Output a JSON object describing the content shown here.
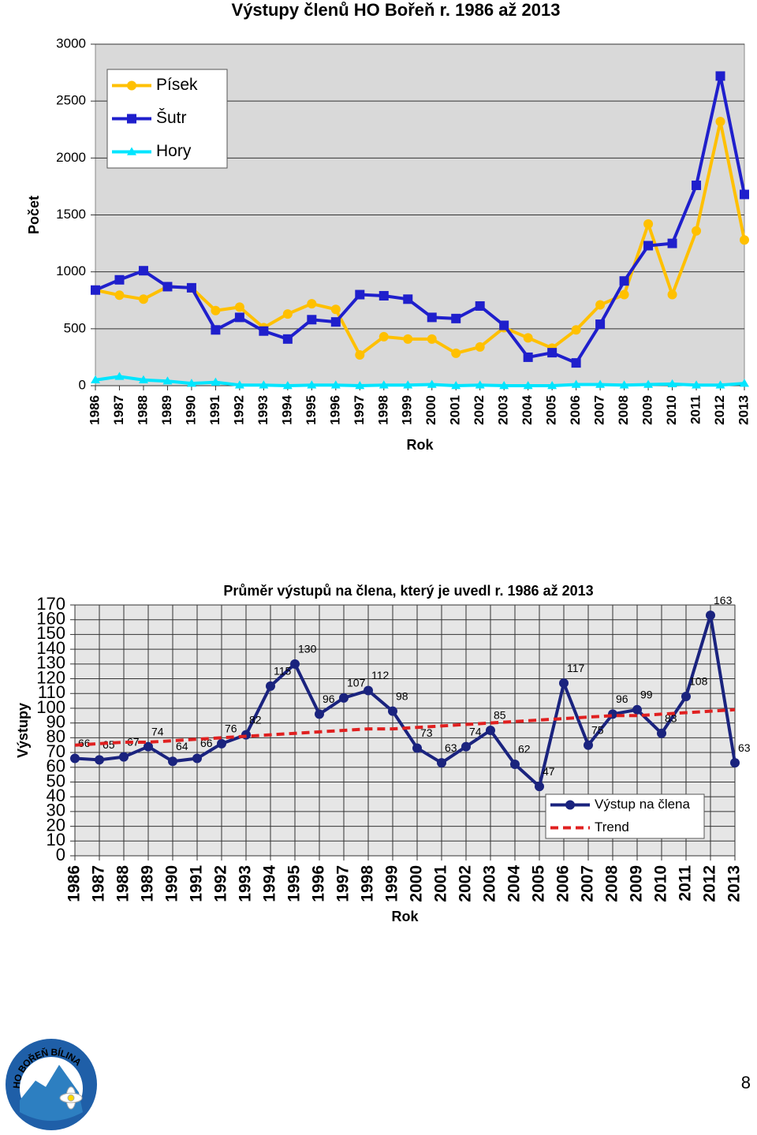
{
  "chart_data": [
    {
      "type": "line",
      "title": "Výstupy členů HO Bořeň r. 1986 až 2013",
      "xlabel": "Rok",
      "ylabel": "Počet",
      "categories": [
        "1986",
        "1987",
        "1988",
        "1989",
        "1990",
        "1991",
        "1992",
        "1993",
        "1994",
        "1995",
        "1996",
        "1997",
        "1998",
        "1999",
        "2000",
        "2001",
        "2002",
        "2003",
        "2004",
        "2005",
        "2006",
        "2007",
        "2008",
        "2009",
        "2010",
        "2011",
        "2012",
        "2013"
      ],
      "ylim": [
        0,
        3000
      ],
      "yticks": [
        0,
        500,
        1000,
        1500,
        2000,
        2500,
        3000
      ],
      "grid": true,
      "xgrid": false,
      "legend": "upper left",
      "series": [
        {
          "name": "Písek",
          "color": "#ffc000",
          "marker": "circle",
          "values": [
            840,
            795,
            760,
            870,
            860,
            660,
            690,
            510,
            630,
            720,
            670,
            270,
            430,
            410,
            410,
            285,
            340,
            510,
            420,
            330,
            490,
            710,
            800,
            1420,
            800,
            1360,
            2320,
            1280
          ]
        },
        {
          "name": "Šutr",
          "color": "#1f1fcc",
          "marker": "square",
          "values": [
            840,
            930,
            1010,
            870,
            860,
            490,
            600,
            480,
            410,
            580,
            560,
            800,
            790,
            760,
            600,
            590,
            700,
            530,
            250,
            290,
            200,
            540,
            920,
            1230,
            1250,
            1760,
            2720,
            1680
          ]
        },
        {
          "name": "Hory",
          "color": "#00e5ff",
          "marker": "triangle",
          "values": [
            50,
            80,
            50,
            40,
            20,
            30,
            5,
            5,
            0,
            5,
            5,
            0,
            5,
            5,
            10,
            0,
            5,
            0,
            0,
            0,
            10,
            10,
            5,
            10,
            15,
            5,
            5,
            20
          ]
        }
      ]
    },
    {
      "type": "line",
      "title": "Průměr výstupů na člena, který je uvedl r. 1986 až 2013",
      "xlabel": "Rok",
      "ylabel": "Výstupy",
      "categories": [
        "1986",
        "1987",
        "1988",
        "1989",
        "1990",
        "1991",
        "1992",
        "1993",
        "1994",
        "1995",
        "1996",
        "1997",
        "1998",
        "1999",
        "2000",
        "2001",
        "2002",
        "2003",
        "2004",
        "2005",
        "2006",
        "2007",
        "2008",
        "2009",
        "2010",
        "2011",
        "2012",
        "2013"
      ],
      "ylim": [
        0,
        170
      ],
      "yticks": [
        0,
        10,
        20,
        30,
        40,
        50,
        60,
        70,
        80,
        90,
        100,
        110,
        120,
        130,
        140,
        150,
        160,
        170
      ],
      "grid": true,
      "xgrid": true,
      "legend": "lower right",
      "series": [
        {
          "name": "Výstup na člena",
          "color": "#1a237e",
          "marker": "circle",
          "data_labels": true,
          "values": [
            66,
            65,
            67,
            74,
            64,
            66,
            76,
            82,
            115,
            130,
            96,
            107,
            112,
            98,
            73,
            63,
            74,
            85,
            62,
            47,
            117,
            75,
            96,
            99,
            83,
            108,
            163,
            63
          ]
        },
        {
          "name": "Trend",
          "color": "#e02020",
          "marker": "none",
          "dash": true,
          "values": [
            75,
            76,
            77,
            77,
            78,
            79,
            80,
            81,
            82,
            83,
            84,
            85,
            86,
            86,
            87,
            88,
            89,
            90,
            91,
            92,
            93,
            94,
            95,
            95,
            96,
            97,
            98,
            99
          ]
        }
      ]
    }
  ],
  "logo": {
    "text": "HO BOŘEŇ BÍLINA"
  },
  "page_number": 8
}
